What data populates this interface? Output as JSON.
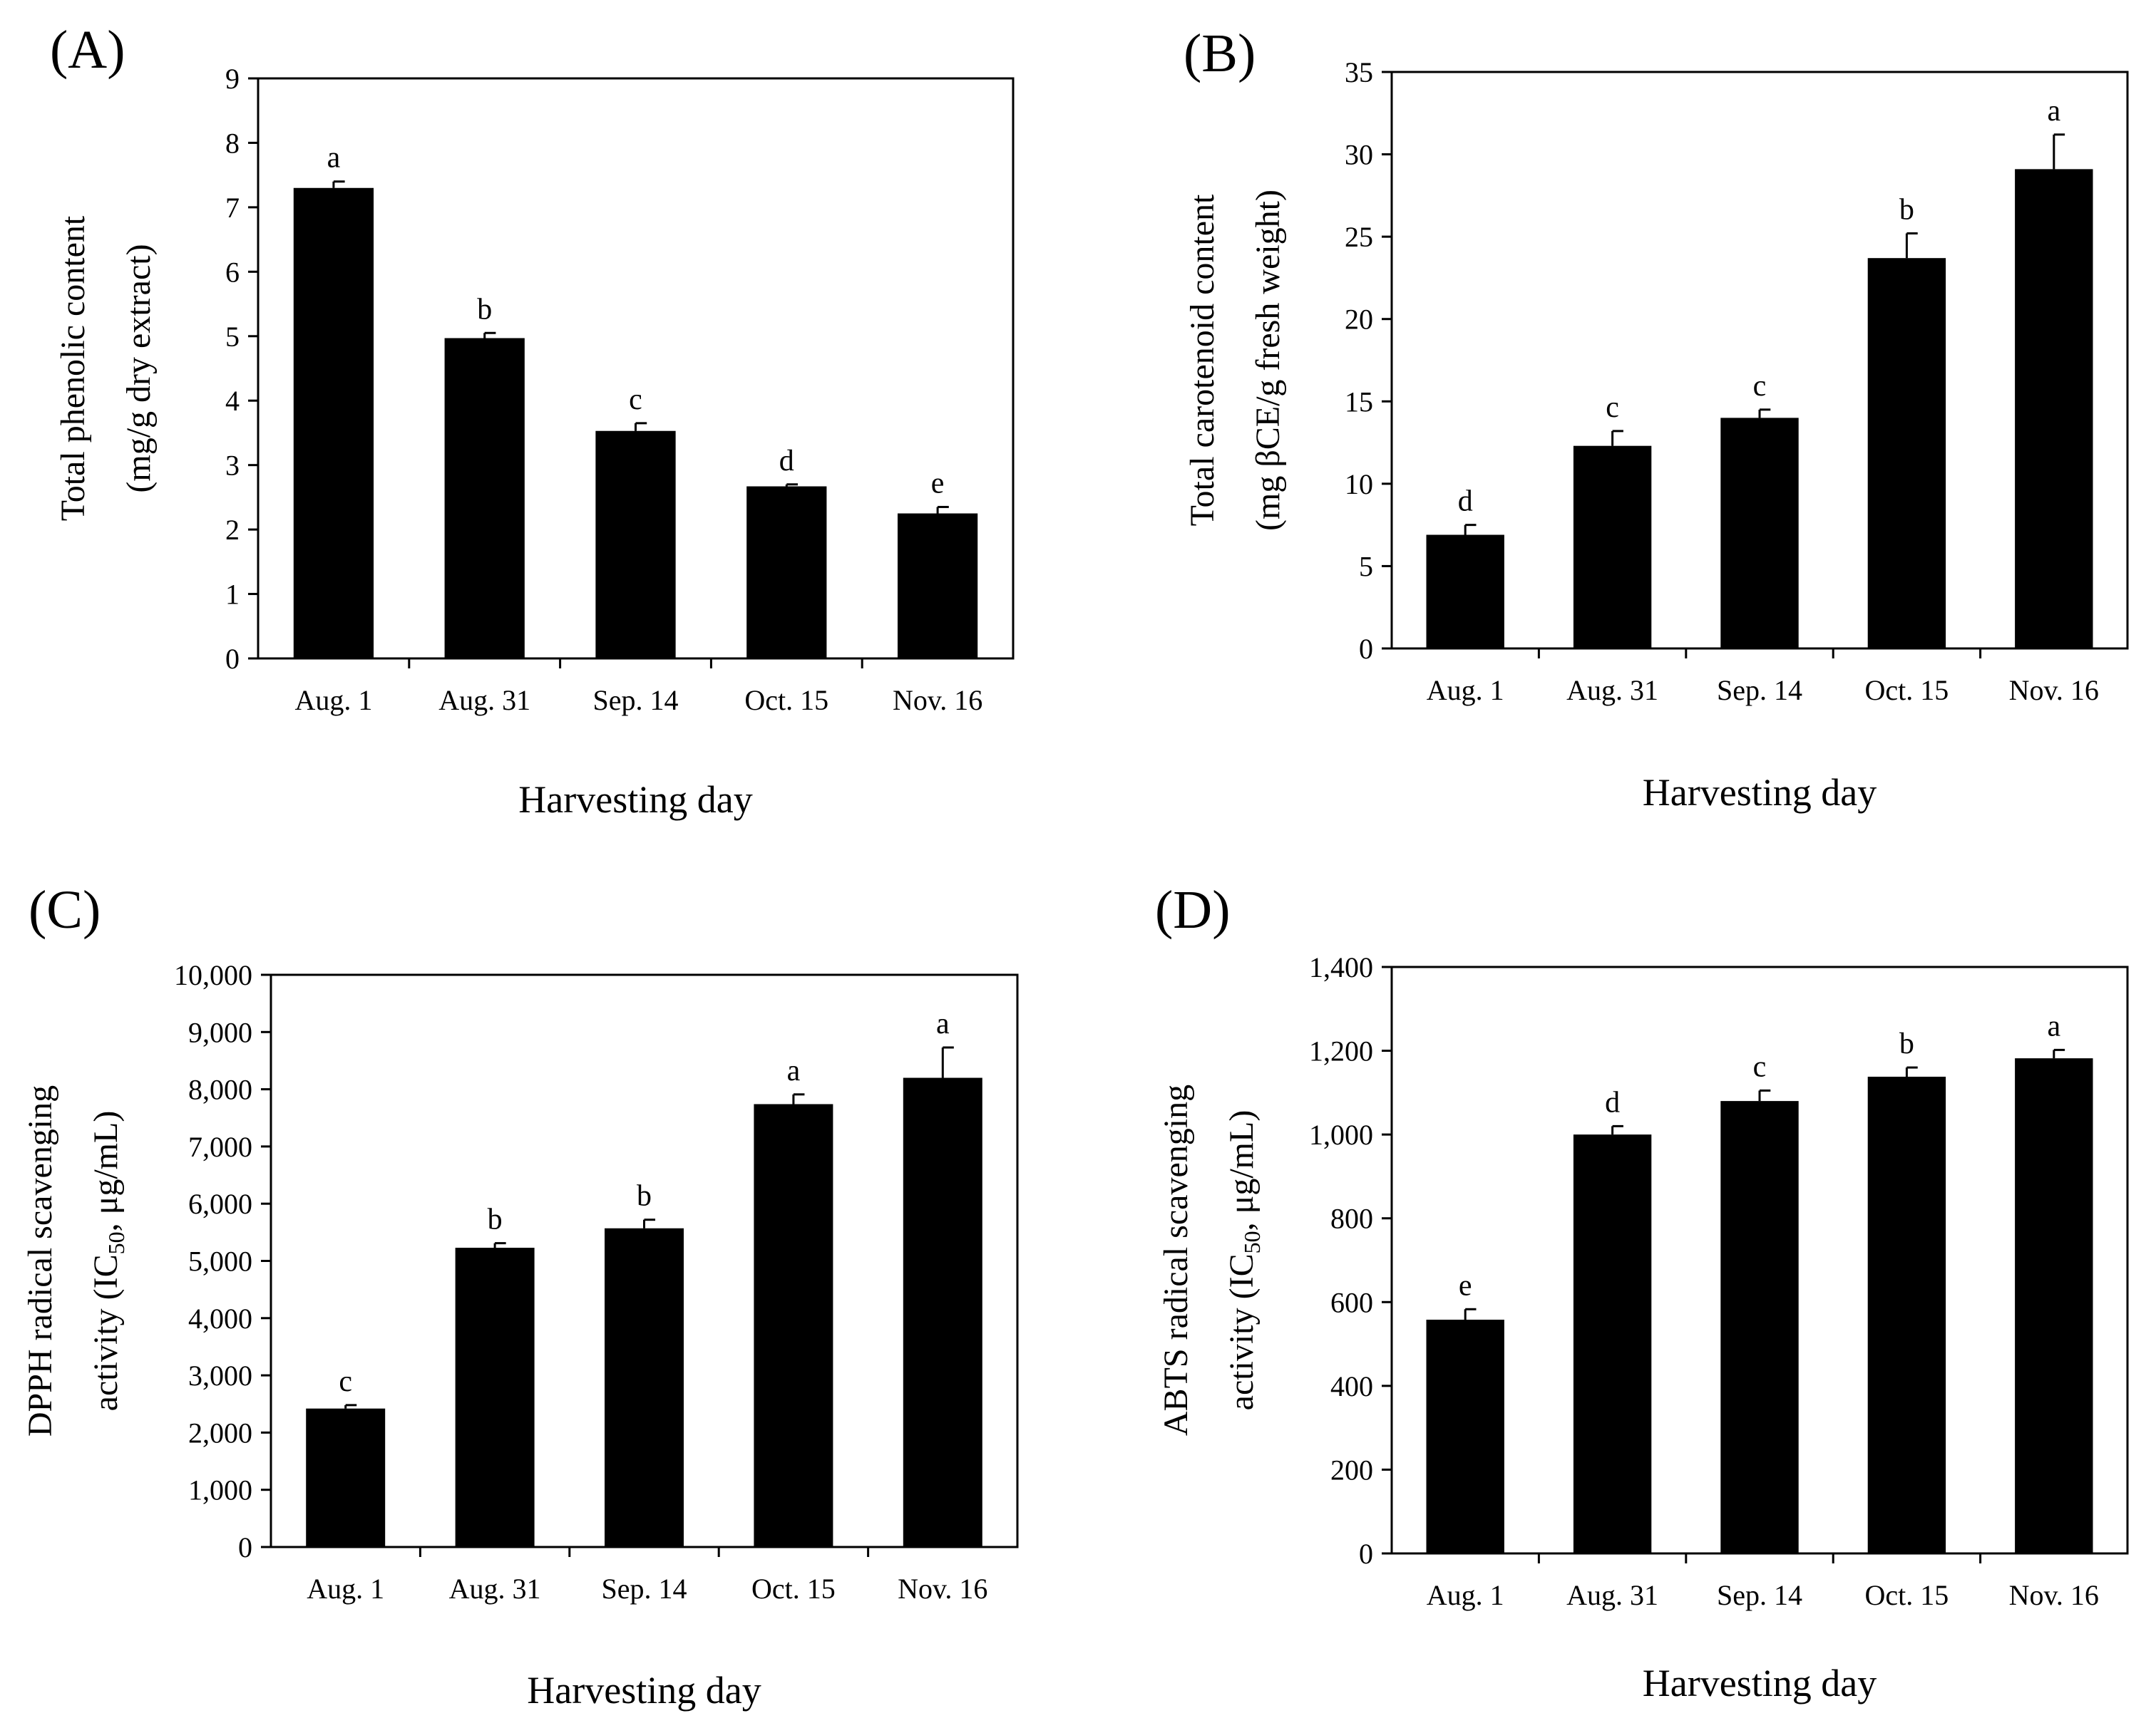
{
  "chart_data": [
    {
      "panel": "(A)",
      "type": "bar",
      "categories": [
        "Aug. 1",
        "Aug. 31",
        "Sep. 14",
        "Oct. 15",
        "Nov. 16"
      ],
      "values": [
        7.3,
        4.97,
        3.53,
        2.67,
        2.25
      ],
      "errors": [
        0.1,
        0.08,
        0.12,
        0.03,
        0.1
      ],
      "letters": [
        "a",
        "b",
        "c",
        "d",
        "e"
      ],
      "ylim": [
        0,
        9
      ],
      "yticks": [
        0,
        1,
        2,
        3,
        4,
        5,
        6,
        7,
        8,
        9
      ],
      "ytick_labels": [
        "0",
        "1",
        "2",
        "3",
        "4",
        "5",
        "6",
        "7",
        "8",
        "9"
      ],
      "ylabel_lines": [
        "Total phenolic content",
        "(mg/g dry extract)"
      ],
      "xlabel": "Harvesting day",
      "bar_color": "#000000"
    },
    {
      "panel": "(B)",
      "type": "bar",
      "categories": [
        "Aug. 1",
        "Aug. 31",
        "Sep. 14",
        "Oct. 15",
        "Nov. 16"
      ],
      "values": [
        6.9,
        12.3,
        14.0,
        23.7,
        29.1
      ],
      "errors": [
        0.6,
        0.9,
        0.5,
        1.5,
        2.1
      ],
      "letters": [
        "d",
        "c",
        "c",
        "b",
        "a"
      ],
      "ylim": [
        0,
        35
      ],
      "yticks": [
        0,
        5,
        10,
        15,
        20,
        25,
        30,
        35
      ],
      "ytick_labels": [
        "0",
        "5",
        "10",
        "15",
        "20",
        "25",
        "30",
        "35"
      ],
      "ylabel_lines": [
        "Total carotenoid content",
        "(mg βCE/g fresh weight)"
      ],
      "xlabel": "Harvesting day",
      "bar_color": "#000000"
    },
    {
      "panel": "(C)",
      "type": "bar",
      "categories": [
        "Aug. 1",
        "Aug. 31",
        "Sep. 14",
        "Oct. 15",
        "Nov. 16"
      ],
      "values": [
        2420,
        5230,
        5570,
        7740,
        8200
      ],
      "errors": [
        60,
        80,
        150,
        170,
        530
      ],
      "letters": [
        "c",
        "b",
        "b",
        "a",
        "a"
      ],
      "ylim": [
        0,
        10000
      ],
      "yticks": [
        0,
        1000,
        2000,
        3000,
        4000,
        5000,
        6000,
        7000,
        8000,
        9000,
        10000
      ],
      "ytick_labels": [
        "0",
        "1,000",
        "2,000",
        "3,000",
        "4,000",
        "5,000",
        "6,000",
        "7,000",
        "8,000",
        "9,000",
        "10,000"
      ],
      "ylabel_lines": [
        "DPPH radical scavenging",
        "activity (IC",
        "50",
        ", μg/mL)"
      ],
      "xlabel": "Harvesting day",
      "bar_color": "#000000"
    },
    {
      "panel": "(D)",
      "type": "bar",
      "categories": [
        "Aug. 1",
        "Aug. 31",
        "Sep. 14",
        "Oct. 15",
        "Nov. 16"
      ],
      "values": [
        558,
        1000,
        1080,
        1138,
        1182
      ],
      "errors": [
        25,
        20,
        25,
        22,
        20
      ],
      "letters": [
        "e",
        "d",
        "c",
        "b",
        "a"
      ],
      "ylim": [
        0,
        1400
      ],
      "yticks": [
        0,
        200,
        400,
        600,
        800,
        1000,
        1200,
        1400
      ],
      "ytick_labels": [
        "0",
        "200",
        "400",
        "600",
        "800",
        "1,000",
        "1,200",
        "1,400"
      ],
      "ylabel_lines": [
        "ABTS radical scavenging",
        "activity (IC",
        "50",
        ", μg/mL)"
      ],
      "xlabel": "Harvesting day",
      "bar_color": "#000000"
    }
  ]
}
